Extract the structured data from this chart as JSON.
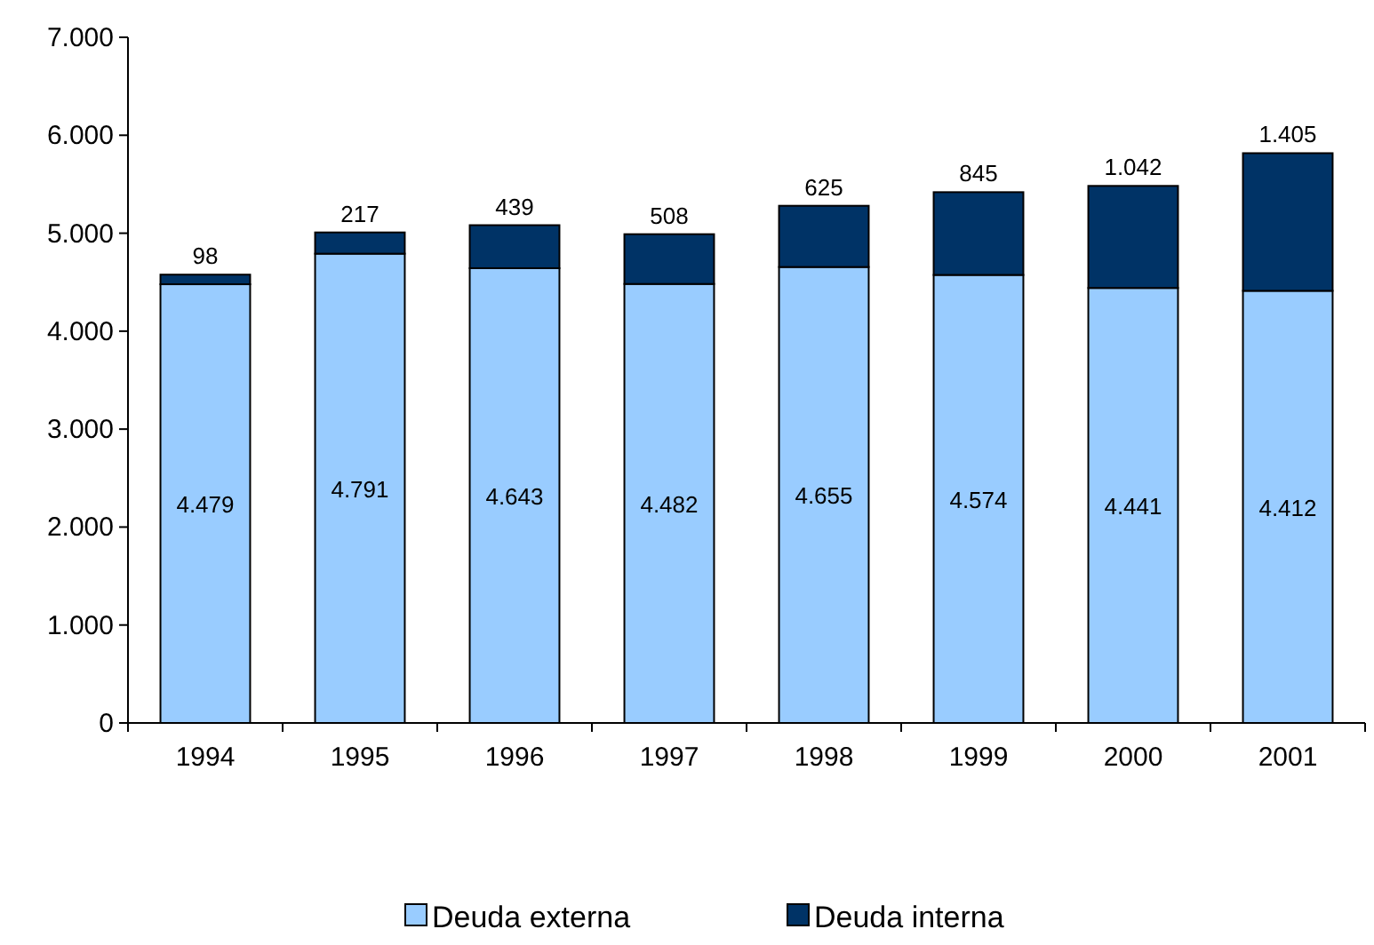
{
  "chart_data": {
    "type": "bar",
    "stacked": true,
    "categories": [
      "1994",
      "1995",
      "1996",
      "1997",
      "1998",
      "1999",
      "2000",
      "2001"
    ],
    "series": [
      {
        "name": "Deuda externa",
        "color": "#99ccff",
        "values": [
          4479,
          4791,
          4643,
          4482,
          4655,
          4574,
          4441,
          4412
        ],
        "value_labels": [
          "4.479",
          "4.791",
          "4.643",
          "4.482",
          "4.655",
          "4.574",
          "4.441",
          "4.412"
        ]
      },
      {
        "name": "Deuda interna",
        "color": "#003366",
        "values": [
          98,
          217,
          439,
          508,
          625,
          845,
          1042,
          1405
        ],
        "value_labels": [
          "98",
          "217",
          "439",
          "508",
          "625",
          "845",
          "1.042",
          "1.405"
        ]
      }
    ],
    "ylim": [
      0,
      7000
    ],
    "yticks": [
      0,
      {
        "value": 1000,
        "label": "1.000"
      },
      {
        "value": 2000,
        "label": "2.000"
      },
      {
        "value": 3000,
        "label": "3.000"
      },
      {
        "value": 4000,
        "label": "4.000"
      },
      {
        "value": 5000,
        "label": "5.000"
      },
      {
        "value": 6000,
        "label": "6.000"
      },
      {
        "value": 7000,
        "label": "7.000"
      }
    ],
    "grid": false,
    "legend": "bottom"
  }
}
